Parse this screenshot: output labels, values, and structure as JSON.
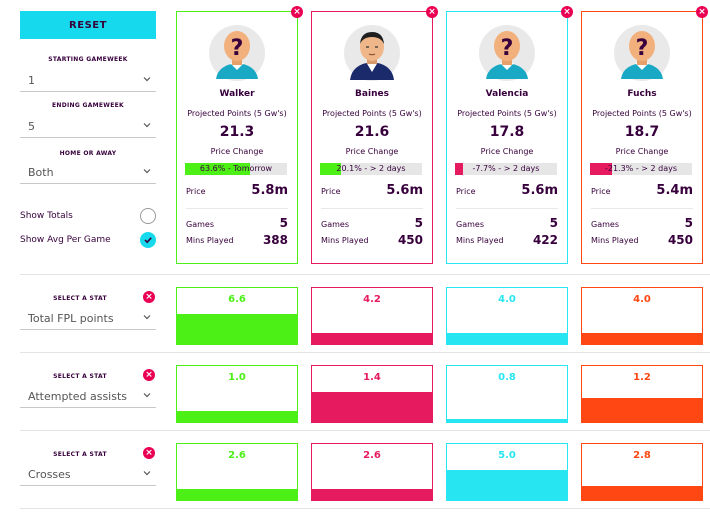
{
  "controls": {
    "reset_label": "RESET",
    "starting_label": "STARTING GAMEWEEK",
    "starting_value": "1",
    "ending_label": "ENDING GAMEWEEK",
    "ending_value": "5",
    "home_away_label": "HOME OR AWAY",
    "home_away_value": "Both",
    "show_totals_label": "Show Totals",
    "show_totals_checked": false,
    "show_avg_label": "Show Avg Per Game",
    "show_avg_checked": true
  },
  "labels": {
    "projected_points": "Projected Points (5 Gw's)",
    "price_change": "Price Change",
    "price": "Price",
    "games": "Games",
    "mins_played": "Mins Played",
    "select_a_stat": "SELECT A STAT"
  },
  "players": [
    {
      "name": "Walker",
      "color": "#4cf016",
      "avatar": "unknown-player",
      "points": "21.3",
      "price_change_text": "63.6% - Tomorrow",
      "price_change_pct": 63.6,
      "price": "5.8m",
      "games": "5",
      "mins": "388"
    },
    {
      "name": "Baines",
      "color": "#e61a5e",
      "avatar": "player-photo",
      "points": "21.6",
      "price_change_text": "20.1% - > 2 days",
      "price_change_pct": 20.1,
      "price": "5.6m",
      "games": "5",
      "mins": "450"
    },
    {
      "name": "Valencia",
      "color": "#27e6f2",
      "avatar": "unknown-player",
      "points": "17.8",
      "price_change_text": "-7.7% - > 2 days",
      "price_change_pct": -7.7,
      "price": "5.6m",
      "games": "5",
      "mins": "422"
    },
    {
      "name": "Fuchs",
      "color": "#ff4713",
      "avatar": "unknown-player",
      "points": "18.7",
      "price_change_text": "-21.3% - > 2 days",
      "price_change_pct": -21.3,
      "price": "5.4m",
      "games": "5",
      "mins": "450"
    }
  ],
  "stats": [
    {
      "selected": "Total FPL points",
      "values": [
        "6.6",
        "4.2",
        "4.0",
        "4.0"
      ],
      "fills": [
        1.0,
        0.35,
        0.35,
        0.35
      ]
    },
    {
      "selected": "Attempted assists",
      "values": [
        "1.0",
        "1.4",
        "0.8",
        "1.2"
      ],
      "fills": [
        0.35,
        1.0,
        0.1,
        0.8
      ]
    },
    {
      "selected": "Crosses",
      "values": [
        "2.6",
        "2.6",
        "5.0",
        "2.8"
      ],
      "fills": [
        0.35,
        0.35,
        1.0,
        0.45
      ]
    }
  ]
}
